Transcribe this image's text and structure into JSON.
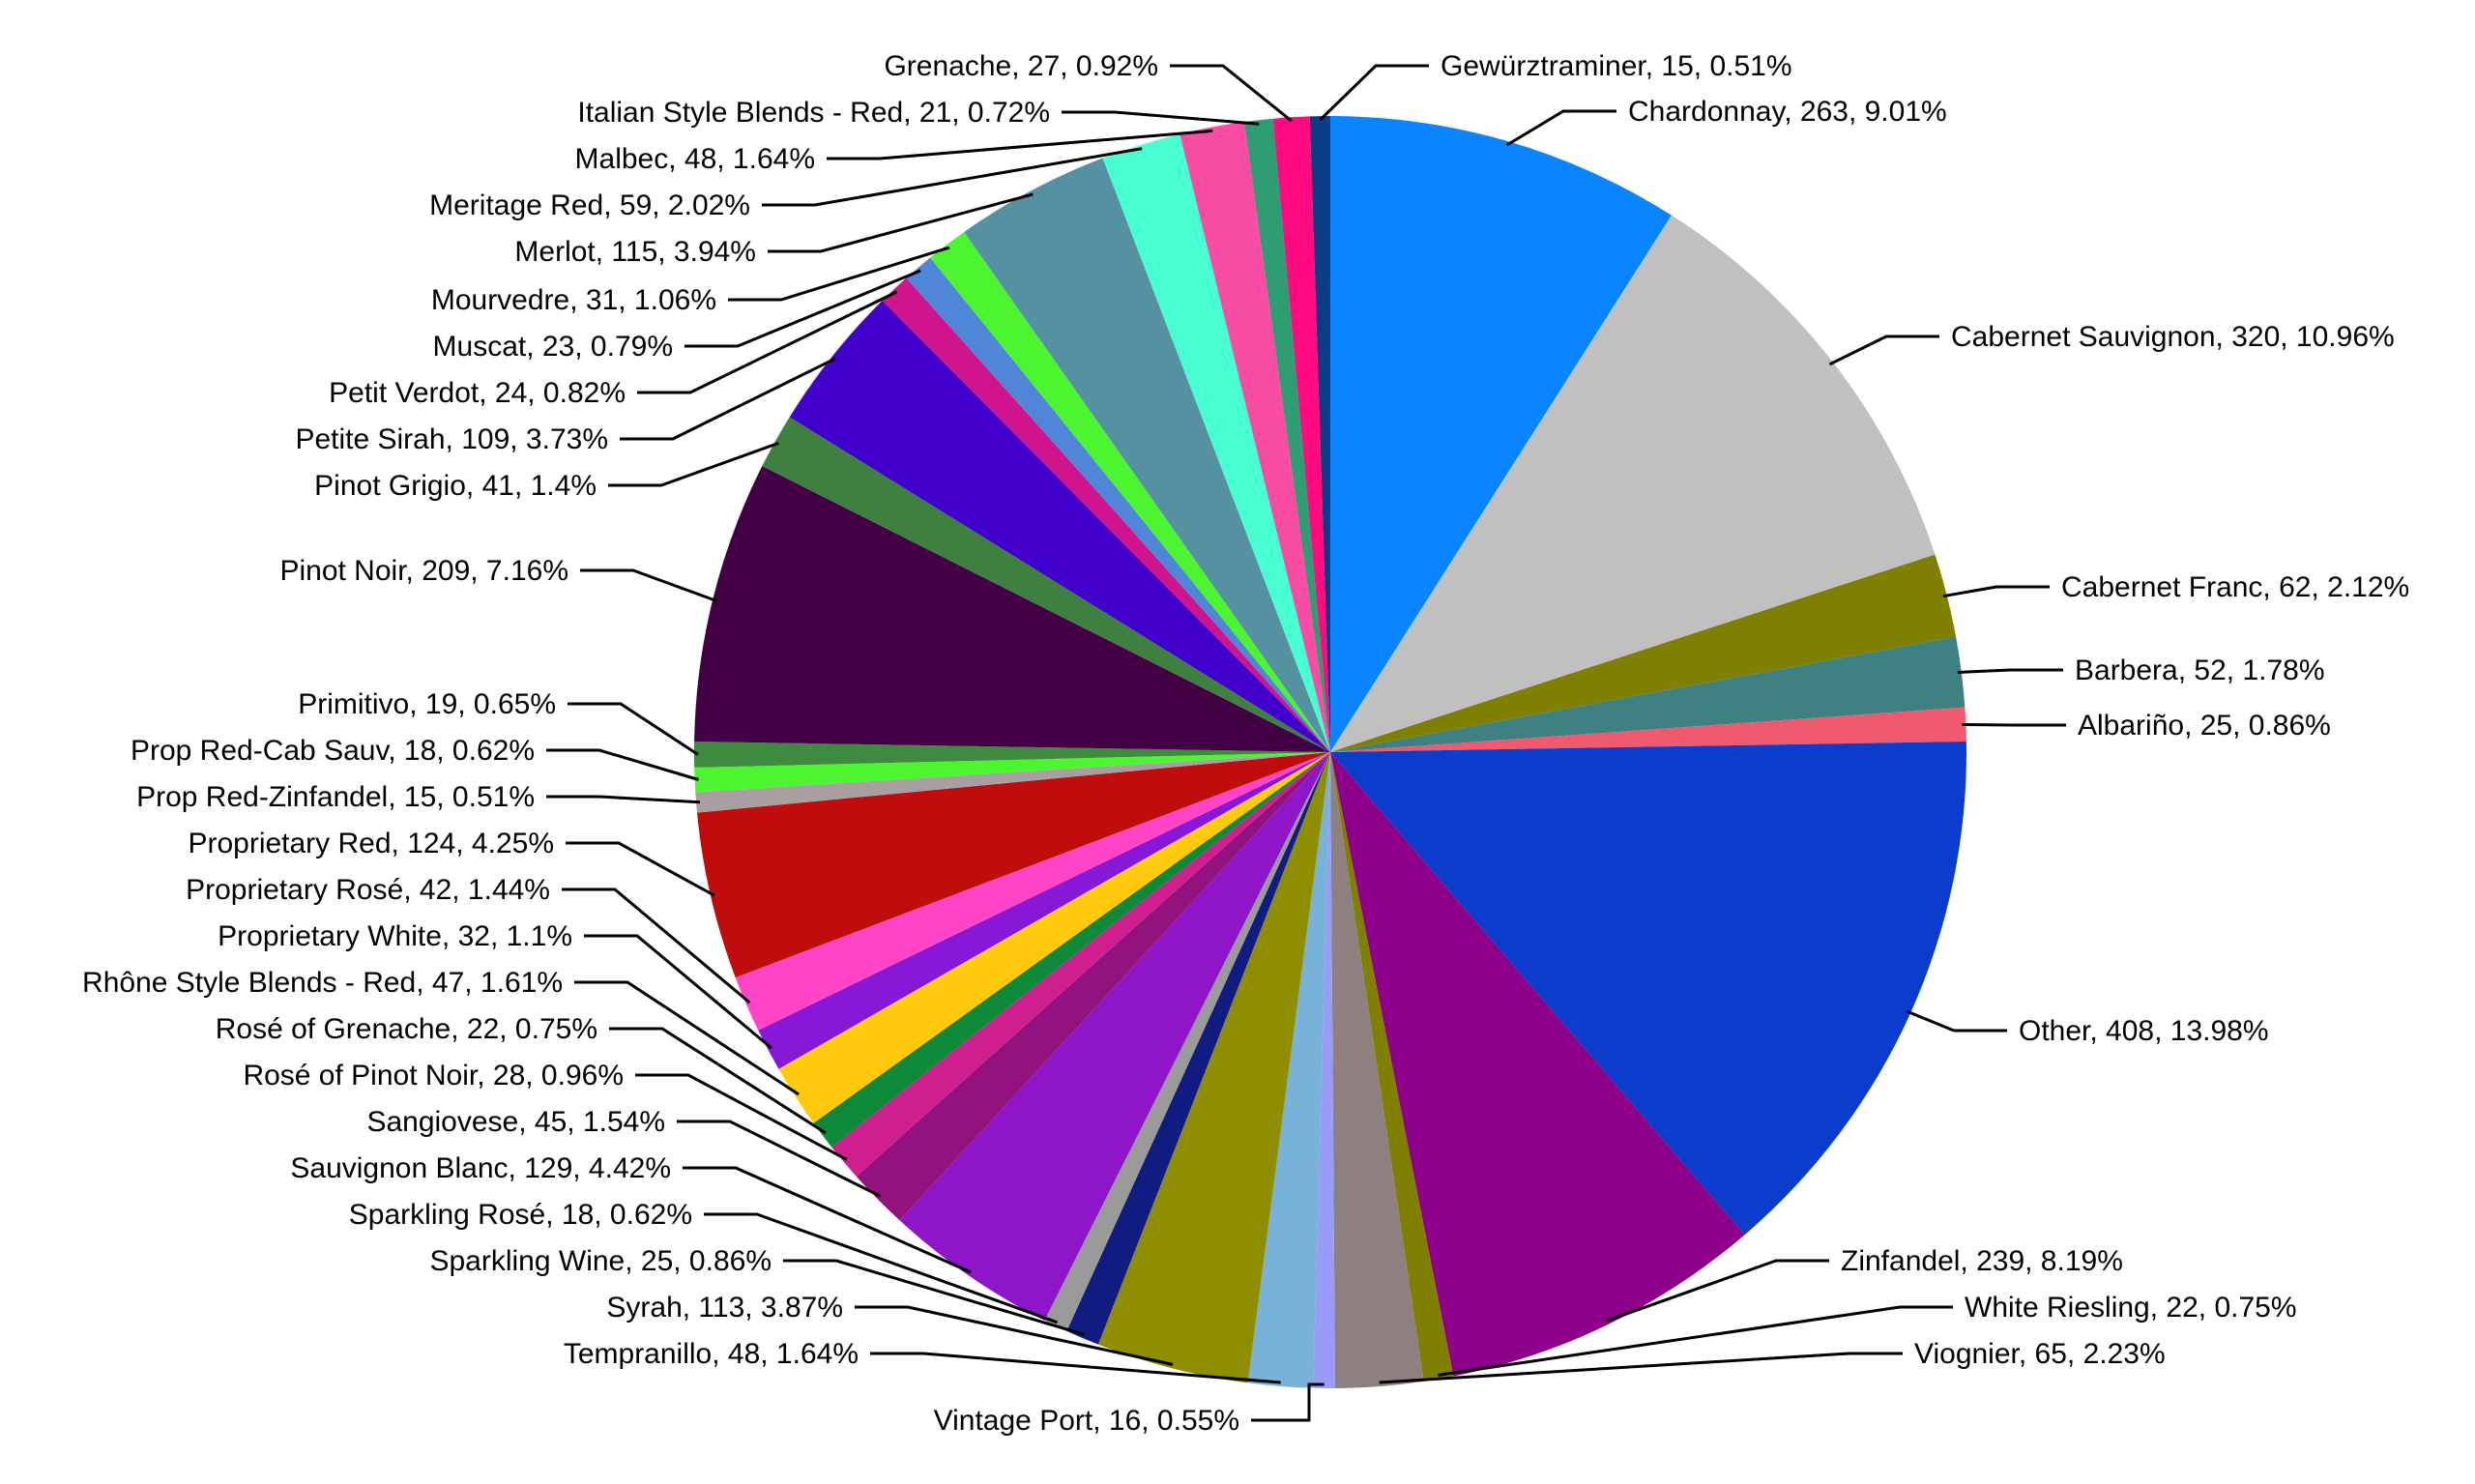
{
  "chart_data": {
    "type": "pie",
    "start": "12 o'clock",
    "direction": "clockwise",
    "slices": [
      {
        "name": "Chardonnay",
        "value": 263,
        "percent": "9.01%",
        "color": "#0a84ff"
      },
      {
        "name": "Cabernet Sauvignon",
        "value": 320,
        "percent": "10.96%",
        "color": "#c0c0c0"
      },
      {
        "name": "Cabernet Franc",
        "value": 62,
        "percent": "2.12%",
        "color": "#808000"
      },
      {
        "name": "Barbera",
        "value": 52,
        "percent": "1.78%",
        "color": "#3f8080"
      },
      {
        "name": "Albariño",
        "value": 25,
        "percent": "0.86%",
        "color": "#ef5a6f"
      },
      {
        "name": "Other",
        "value": 408,
        "percent": "13.98%",
        "color": "#0c3ccc"
      },
      {
        "name": "Zinfandel",
        "value": 239,
        "percent": "8.19%",
        "color": "#8e0089"
      },
      {
        "name": "White Riesling",
        "value": 22,
        "percent": "0.75%",
        "color": "#808000"
      },
      {
        "name": "Viognier",
        "value": 65,
        "percent": "2.23%",
        "color": "#8f8080"
      },
      {
        "name": "Vintage Port",
        "value": 16,
        "percent": "0.55%",
        "color": "#9a9af8"
      },
      {
        "name": "Tempranillo",
        "value": 48,
        "percent": "1.64%",
        "color": "#78b2d8"
      },
      {
        "name": "Syrah",
        "value": 113,
        "percent": "3.87%",
        "color": "#8e8e00"
      },
      {
        "name": "Sparkling Wine",
        "value": 25,
        "percent": "0.86%",
        "color": "#101c80"
      },
      {
        "name": "Sparkling Rosé",
        "value": 18,
        "percent": "0.62%",
        "color": "#9a9a9a"
      },
      {
        "name": "Sauvignon Blanc",
        "value": 129,
        "percent": "4.42%",
        "color": "#8e15c8"
      },
      {
        "name": "Sangiovese",
        "value": 45,
        "percent": "1.54%",
        "color": "#92127e"
      },
      {
        "name": "Rosé of Pinot Noir",
        "value": 28,
        "percent": "0.96%",
        "color": "#cf1f8e"
      },
      {
        "name": "Rosé of Grenache",
        "value": 22,
        "percent": "0.75%",
        "color": "#0c8a3a"
      },
      {
        "name": "Rhône Style Blends - Red",
        "value": 47,
        "percent": "1.61%",
        "color": "#ffc90e"
      },
      {
        "name": "Proprietary White",
        "value": 32,
        "percent": "1.1%",
        "color": "#8818d8"
      },
      {
        "name": "Proprietary Rosé",
        "value": 42,
        "percent": "1.44%",
        "color": "#ff44c8"
      },
      {
        "name": "Proprietary Red",
        "value": 124,
        "percent": "4.25%",
        "color": "#c00c0c"
      },
      {
        "name": "Prop Red-Zinfandel",
        "value": 15,
        "percent": "0.51%",
        "color": "#a8a0a0"
      },
      {
        "name": "Prop Red-Cab Sauv",
        "value": 18,
        "percent": "0.62%",
        "color": "#4cf530"
      },
      {
        "name": "Primitivo",
        "value": 19,
        "percent": "0.65%",
        "color": "#3e8a3e"
      },
      {
        "name": "Pinot Noir",
        "value": 209,
        "percent": "7.16%",
        "color": "#440044"
      },
      {
        "name": "Pinot Grigio",
        "value": 41,
        "percent": "1.4%",
        "color": "#3e8040"
      },
      {
        "name": "Petite Sirah",
        "value": 109,
        "percent": "3.73%",
        "color": "#4200cc"
      },
      {
        "name": "Petit Verdot",
        "value": 24,
        "percent": "0.82%",
        "color": "#d0148c"
      },
      {
        "name": "Muscat",
        "value": 23,
        "percent": "0.79%",
        "color": "#4f86d8"
      },
      {
        "name": "Mourvedre",
        "value": 31,
        "percent": "1.06%",
        "color": "#4cf530"
      },
      {
        "name": "Merlot",
        "value": 115,
        "percent": "3.94%",
        "color": "#5591a1"
      },
      {
        "name": "Meritage Red",
        "value": 59,
        "percent": "2.02%",
        "color": "#48ffd2"
      },
      {
        "name": "Malbec",
        "value": 48,
        "percent": "1.64%",
        "color": "#f84ca5"
      },
      {
        "name": "Italian Style Blends - Red",
        "value": 21,
        "percent": "0.72%",
        "color": "#2e9e72"
      },
      {
        "name": "Grenache",
        "value": 27,
        "percent": "0.92%",
        "color": "#ff0a80"
      },
      {
        "name": "Gewürztraminer",
        "value": 15,
        "percent": "0.51%",
        "color": "#0b3c86"
      }
    ]
  }
}
